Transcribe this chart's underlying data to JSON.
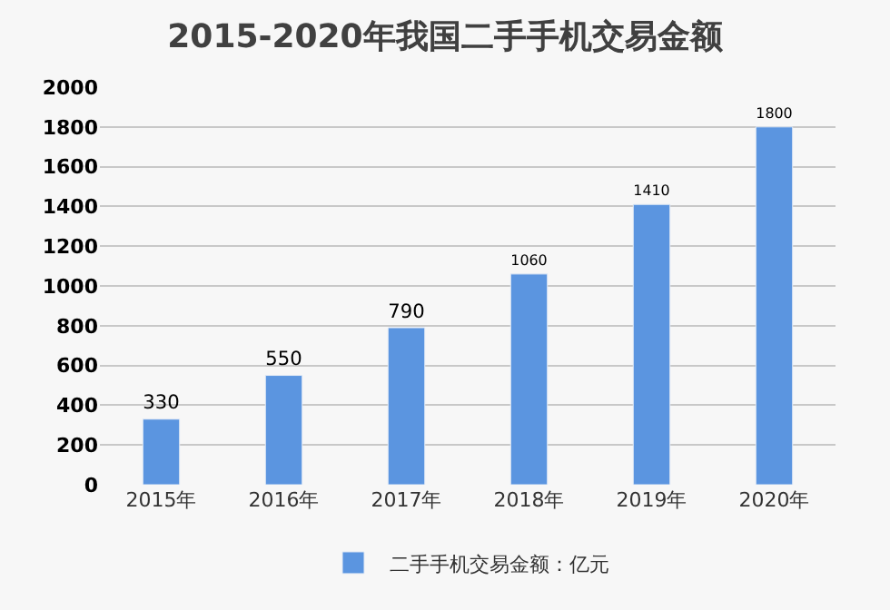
{
  "chart_data": {
    "type": "bar",
    "title": "2015-2020年我国二手手机交易金额",
    "categories": [
      "2015年",
      "2016年",
      "2017年",
      "2018年",
      "2019年",
      "2020年"
    ],
    "series": [
      {
        "name": "二手手机交易金额：亿元",
        "color": "#5b95e0",
        "values": [
          330,
          550,
          790,
          1060,
          1410,
          1800
        ]
      }
    ],
    "ylim": [
      0,
      2000
    ],
    "yticks": [
      0,
      200,
      400,
      600,
      800,
      1000,
      1200,
      1400,
      1600,
      1800,
      2000
    ],
    "grid": "y",
    "legend": "bottom",
    "data_labels": true
  }
}
